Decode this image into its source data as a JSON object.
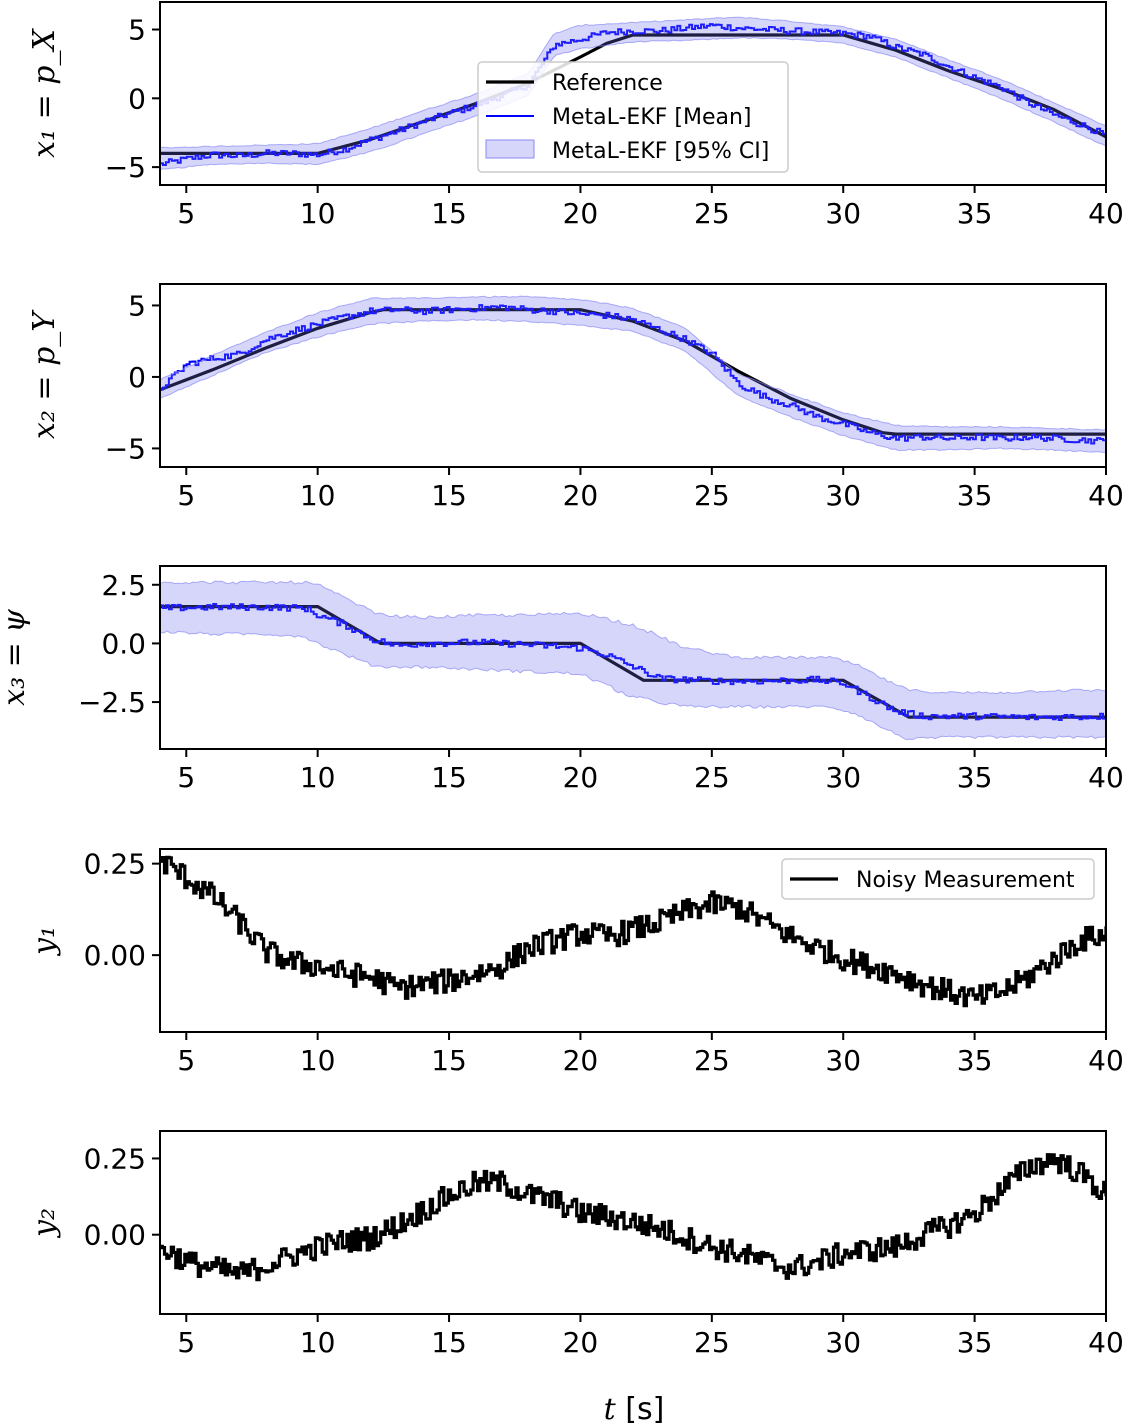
{
  "chart_data": [
    {
      "type": "line",
      "ylabel": "x₁ = p_X",
      "xlim": [
        4,
        40
      ],
      "ylim": [
        -6.3,
        7.0
      ],
      "xticks": [
        5,
        10,
        15,
        20,
        25,
        30,
        35,
        40
      ],
      "xtick_labels": [
        "5",
        "10",
        "15",
        "20",
        "25",
        "30",
        "35",
        "40"
      ],
      "yticks": [
        -5,
        0,
        5
      ],
      "ytick_labels": [
        "−5",
        "0",
        "5"
      ],
      "grid": false,
      "legend": {
        "placement": "center",
        "entries": [
          "Reference",
          "MetaL-EKF [Mean]",
          "MetaL-EKF [95% CI]"
        ]
      },
      "series": [
        {
          "name": "Reference",
          "color": "#000000",
          "style": "line",
          "x": [
            4,
            10,
            12,
            14,
            16,
            18,
            20,
            21,
            22,
            30,
            32,
            34,
            36,
            38,
            40
          ],
          "y": [
            -4.0,
            -4.0,
            -3.0,
            -1.7,
            -0.4,
            1.1,
            3.0,
            4.0,
            4.6,
            4.6,
            3.5,
            2.0,
            0.7,
            -0.8,
            -2.8
          ]
        },
        {
          "name": "MetaL-EKF [Mean]",
          "color": "#0000ff",
          "style": "step",
          "x": [
            4,
            5,
            6,
            7,
            8,
            9,
            10,
            11,
            12,
            13,
            14,
            15,
            16,
            17,
            18,
            19,
            20,
            21,
            22,
            23,
            24,
            25,
            26,
            27,
            28,
            29,
            30,
            31,
            32,
            33,
            34,
            35,
            36,
            37,
            38,
            39,
            40
          ],
          "y": [
            -4.8,
            -4.4,
            -4.1,
            -4.2,
            -4.0,
            -4.0,
            -4.1,
            -3.7,
            -3.0,
            -2.4,
            -1.7,
            -1.1,
            -0.5,
            0.2,
            1.0,
            3.9,
            4.3,
            4.8,
            4.9,
            4.9,
            5.1,
            5.3,
            5.1,
            5.0,
            4.9,
            4.8,
            4.7,
            4.5,
            3.7,
            3.2,
            2.3,
            1.5,
            0.8,
            -0.3,
            -1.2,
            -1.9,
            -2.7
          ]
        },
        {
          "name": "MetaL-EKF [95% CI]",
          "color": "#6666ee",
          "style": "band",
          "x": [
            4,
            6,
            8,
            10,
            12,
            14,
            16,
            18,
            19,
            20,
            22,
            24,
            26,
            28,
            30,
            32,
            34,
            36,
            38,
            40
          ],
          "lower": [
            -5.2,
            -4.8,
            -4.7,
            -4.8,
            -3.9,
            -2.6,
            -1.3,
            0.2,
            3.1,
            3.6,
            4.1,
            4.2,
            4.4,
            4.3,
            4.0,
            3.0,
            1.5,
            0.0,
            -1.7,
            -3.5
          ],
          "upper": [
            -3.6,
            -3.5,
            -3.4,
            -3.3,
            -2.2,
            -0.9,
            0.3,
            1.8,
            4.7,
            5.3,
            5.5,
            5.7,
            5.9,
            5.6,
            5.2,
            4.3,
            2.8,
            1.4,
            -0.3,
            -2.0
          ]
        }
      ]
    },
    {
      "type": "line",
      "ylabel": "x₂ = p_Y",
      "xlim": [
        4,
        40
      ],
      "ylim": [
        -6.3,
        6.5
      ],
      "xticks": [
        5,
        10,
        15,
        20,
        25,
        30,
        35,
        40
      ],
      "xtick_labels": [
        "5",
        "10",
        "15",
        "20",
        "25",
        "30",
        "35",
        "40"
      ],
      "yticks": [
        -5,
        0,
        5
      ],
      "ytick_labels": [
        "−5",
        "0",
        "5"
      ],
      "grid": false,
      "series": [
        {
          "name": "Reference",
          "color": "#000000",
          "style": "line",
          "x": [
            4,
            6,
            8,
            10,
            12,
            12.5,
            20,
            22,
            24,
            26,
            28,
            30,
            31.5,
            32,
            40
          ],
          "y": [
            -0.9,
            0.5,
            2.0,
            3.4,
            4.5,
            4.7,
            4.7,
            3.9,
            2.5,
            0.4,
            -1.5,
            -3.0,
            -3.9,
            -4.0,
            -4.0
          ]
        },
        {
          "name": "MetaL-EKF [Mean]",
          "color": "#0000ff",
          "style": "step",
          "x": [
            4,
            5,
            6,
            7,
            8,
            9,
            10,
            11,
            12,
            13,
            14,
            15,
            16,
            17,
            18,
            19,
            20,
            21,
            22,
            23,
            24,
            25,
            26,
            27,
            28,
            29,
            30,
            31,
            32,
            33,
            34,
            35,
            36,
            37,
            38,
            39,
            40
          ],
          "y": [
            -0.8,
            0.9,
            1.3,
            1.6,
            2.6,
            3.2,
            3.7,
            4.2,
            4.6,
            4.7,
            4.6,
            4.7,
            4.8,
            4.9,
            4.7,
            4.6,
            4.4,
            4.3,
            4.0,
            3.3,
            2.6,
            1.6,
            -0.5,
            -1.4,
            -2.0,
            -2.8,
            -3.3,
            -3.9,
            -4.3,
            -4.2,
            -4.3,
            -4.2,
            -4.3,
            -4.2,
            -4.3,
            -4.4,
            -4.5
          ]
        },
        {
          "name": "MetaL-EKF [95% CI]",
          "color": "#6666ee",
          "style": "band",
          "x": [
            4,
            6,
            8,
            10,
            12,
            14,
            16,
            18,
            20,
            22,
            24,
            26,
            28,
            30,
            32,
            34,
            36,
            38,
            40
          ],
          "lower": [
            -1.5,
            0.1,
            1.7,
            2.8,
            3.7,
            3.9,
            4.0,
            3.9,
            3.6,
            3.2,
            1.8,
            -1.3,
            -2.8,
            -4.1,
            -5.1,
            -5.1,
            -5.0,
            -5.1,
            -5.3
          ],
          "upper": [
            -0.2,
            1.5,
            3.1,
            4.5,
            5.5,
            5.5,
            5.6,
            5.6,
            5.4,
            4.8,
            3.4,
            0.2,
            -1.2,
            -2.5,
            -3.4,
            -3.5,
            -3.5,
            -3.6,
            -3.7
          ]
        }
      ]
    },
    {
      "type": "line",
      "ylabel": "x₃ = ψ",
      "xlim": [
        4,
        40
      ],
      "ylim": [
        -4.5,
        3.3
      ],
      "xticks": [
        5,
        10,
        15,
        20,
        25,
        30,
        35,
        40
      ],
      "xtick_labels": [
        "5",
        "10",
        "15",
        "20",
        "25",
        "30",
        "35",
        "40"
      ],
      "yticks": [
        -2.5,
        0.0,
        2.5
      ],
      "ytick_labels": [
        "−2.5",
        "0.0",
        "2.5"
      ],
      "grid": false,
      "series": [
        {
          "name": "Reference",
          "color": "#000000",
          "style": "line",
          "x": [
            4,
            10,
            12.4,
            20,
            22.4,
            30,
            32.5,
            40
          ],
          "y": [
            1.57,
            1.57,
            0.0,
            0.0,
            -1.57,
            -1.57,
            -3.14,
            -3.14
          ]
        },
        {
          "name": "MetaL-EKF [Mean]",
          "color": "#0000ff",
          "style": "step",
          "x": [
            4,
            6,
            8,
            9.5,
            10,
            11,
            12,
            13,
            14,
            16,
            18,
            20,
            21,
            22,
            23,
            25,
            27,
            29,
            30,
            31,
            32,
            33,
            35,
            37,
            40
          ],
          "y": [
            1.5,
            1.55,
            1.55,
            1.5,
            1.2,
            0.8,
            0.2,
            -0.1,
            0.0,
            0.05,
            -0.05,
            -0.2,
            -0.5,
            -1.0,
            -1.5,
            -1.6,
            -1.6,
            -1.55,
            -1.7,
            -2.3,
            -2.9,
            -3.1,
            -3.1,
            -3.15,
            -3.1
          ]
        },
        {
          "name": "MetaL-EKF [95% CI]",
          "color": "#6666ee",
          "style": "band",
          "x": [
            4,
            6,
            8,
            9.5,
            10,
            12,
            12.5,
            14,
            16,
            18,
            20,
            22,
            24,
            26,
            28,
            29.5,
            30.5,
            31.5,
            32.5,
            34,
            36,
            38,
            40
          ],
          "lower": [
            0.5,
            0.4,
            0.4,
            0.3,
            0.0,
            -0.9,
            -1.0,
            -1.0,
            -1.1,
            -1.2,
            -1.3,
            -2.3,
            -2.7,
            -2.7,
            -2.7,
            -2.7,
            -3.0,
            -3.6,
            -4.1,
            -4.0,
            -4.0,
            -4.0,
            -4.0
          ],
          "upper": [
            2.6,
            2.6,
            2.6,
            2.6,
            2.5,
            1.4,
            1.2,
            1.1,
            1.2,
            1.2,
            1.3,
            0.8,
            -0.2,
            -0.6,
            -0.6,
            -0.6,
            -0.9,
            -1.5,
            -2.0,
            -2.1,
            -2.1,
            -2.0,
            -2.0
          ]
        }
      ]
    },
    {
      "type": "line",
      "ylabel": "y₁",
      "xlim": [
        4,
        40
      ],
      "ylim": [
        -0.21,
        0.29
      ],
      "xticks": [
        5,
        10,
        15,
        20,
        25,
        30,
        35,
        40
      ],
      "xtick_labels": [
        "5",
        "10",
        "15",
        "20",
        "25",
        "30",
        "35",
        "40"
      ],
      "yticks": [
        0.0,
        0.25
      ],
      "ytick_labels": [
        "0.00",
        "0.25"
      ],
      "grid": false,
      "legend": {
        "placement": "top-right",
        "entries": [
          "Noisy Measurement"
        ]
      },
      "series": [
        {
          "name": "Noisy Measurement",
          "color": "#000000",
          "style": "noisy-step",
          "x": [
            4,
            5,
            6,
            7,
            8,
            9,
            10,
            11,
            12,
            13,
            14,
            15,
            16,
            17,
            18,
            19,
            20,
            21,
            22,
            23,
            24,
            25,
            26,
            27,
            28,
            29,
            30,
            31,
            32,
            33,
            34,
            35,
            36,
            37,
            38,
            39,
            40
          ],
          "y": [
            0.26,
            0.21,
            0.16,
            0.09,
            0.01,
            -0.02,
            -0.03,
            -0.05,
            -0.06,
            -0.09,
            -0.08,
            -0.07,
            -0.05,
            -0.03,
            0.02,
            0.04,
            0.06,
            0.05,
            0.07,
            0.09,
            0.12,
            0.14,
            0.13,
            0.09,
            0.05,
            0.02,
            -0.01,
            -0.03,
            -0.05,
            -0.08,
            -0.1,
            -0.12,
            -0.1,
            -0.06,
            -0.01,
            0.04,
            0.06
          ]
        }
      ]
    },
    {
      "type": "line",
      "ylabel": "y₂",
      "xlabel": "t [s]",
      "xlim": [
        4,
        40
      ],
      "ylim": [
        -0.26,
        0.34
      ],
      "xticks": [
        5,
        10,
        15,
        20,
        25,
        30,
        35,
        40
      ],
      "xtick_labels": [
        "5",
        "10",
        "15",
        "20",
        "25",
        "30",
        "35",
        "40"
      ],
      "yticks": [
        0.0,
        0.25
      ],
      "ytick_labels": [
        "0.00",
        "0.25"
      ],
      "grid": false,
      "series": [
        {
          "name": "Noisy Measurement",
          "color": "#000000",
          "style": "noisy-step",
          "x": [
            4,
            5,
            6,
            7,
            8,
            9,
            10,
            11,
            12,
            13,
            14,
            15,
            16,
            17,
            18,
            19,
            20,
            21,
            22,
            23,
            24,
            25,
            26,
            27,
            28,
            29,
            30,
            31,
            32,
            33,
            34,
            35,
            36,
            37,
            38,
            39,
            40
          ],
          "y": [
            -0.04,
            -0.09,
            -0.11,
            -0.13,
            -0.1,
            -0.07,
            -0.04,
            -0.02,
            -0.01,
            0.03,
            0.08,
            0.13,
            0.17,
            0.17,
            0.13,
            0.11,
            0.07,
            0.06,
            0.04,
            0.02,
            -0.01,
            -0.04,
            -0.06,
            -0.09,
            -0.11,
            -0.09,
            -0.06,
            -0.05,
            -0.04,
            0.0,
            0.03,
            0.07,
            0.15,
            0.22,
            0.25,
            0.2,
            0.13
          ]
        }
      ]
    }
  ]
}
